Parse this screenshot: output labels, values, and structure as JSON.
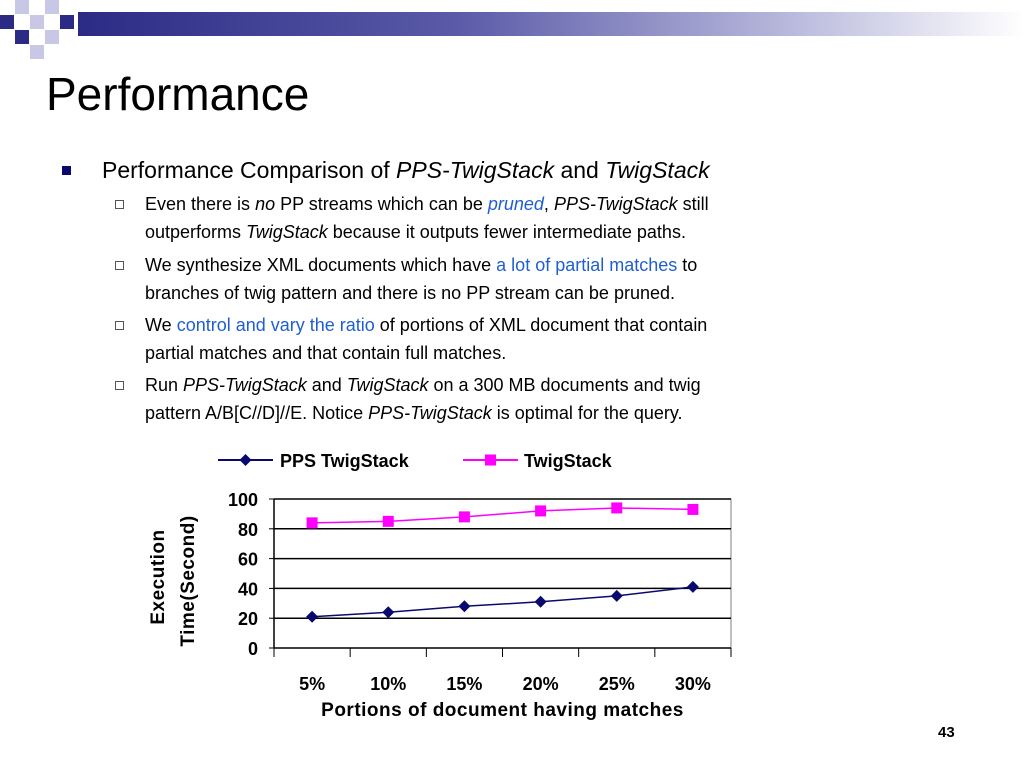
{
  "slide": {
    "title": "Performance",
    "page_number": "43",
    "bullet": {
      "prefix": "Performance Comparison of ",
      "em1": "PPS-TwigStack",
      "mid": " and ",
      "em2": "TwigStack"
    },
    "subbullets": [
      {
        "l1a": " Even there is ",
        "l1b": "no",
        "l1c": " PP streams which can be ",
        "l1d": "pruned",
        "l1e": ", ",
        "l1f": "PPS-TwigStack",
        "l1g": " still",
        "l2a": "outperforms ",
        "l2b": "TwigStack",
        "l2c": " because it outputs fewer intermediate paths."
      },
      {
        "l1a": "We synthesize XML documents which have ",
        "l1b": "a lot of partial matches",
        "l1c": " to",
        "l2a": "branches of twig pattern and there is no PP stream can be pruned."
      },
      {
        "l1a": "We ",
        "l1b": "control and vary the ratio",
        "l1c": " of portions of XML document that contain",
        "l2a": "partial matches and that contain full matches."
      },
      {
        "l1a": "Run ",
        "l1b": "PPS-TwigStack",
        "l1c": " and ",
        "l1d": "TwigStack",
        "l1e": " on a 300 MB documents and twig",
        "l2a": "pattern  A/B[C//D]//E. Notice ",
        "l2b": "PPS-TwigStack",
        "l2c": "  is optimal for the query."
      }
    ]
  },
  "colors": {
    "accent": "#1f5fd0",
    "series1": "#0a0a6e",
    "series2": "#ff00ff"
  },
  "chart_data": {
    "type": "line",
    "categories": [
      "5%",
      "10%",
      "15%",
      "20%",
      "25%",
      "30%"
    ],
    "series": [
      {
        "name": "PPS TwigStack",
        "values": [
          21,
          24,
          28,
          31,
          35,
          41
        ],
        "color": "#0a0a6e",
        "marker": "diamond"
      },
      {
        "name": "TwigStack",
        "values": [
          84,
          85,
          88,
          92,
          94,
          93
        ],
        "color": "#ff00ff",
        "marker": "square"
      }
    ],
    "xlabel": "Portions of document having matches",
    "ylabel_line1": "Execution",
    "ylabel_line2": "Time(Second)",
    "yticks": [
      "0",
      "20",
      "40",
      "60",
      "80",
      "100"
    ],
    "ylim": [
      0,
      100
    ],
    "grid": true,
    "legend": "top"
  }
}
